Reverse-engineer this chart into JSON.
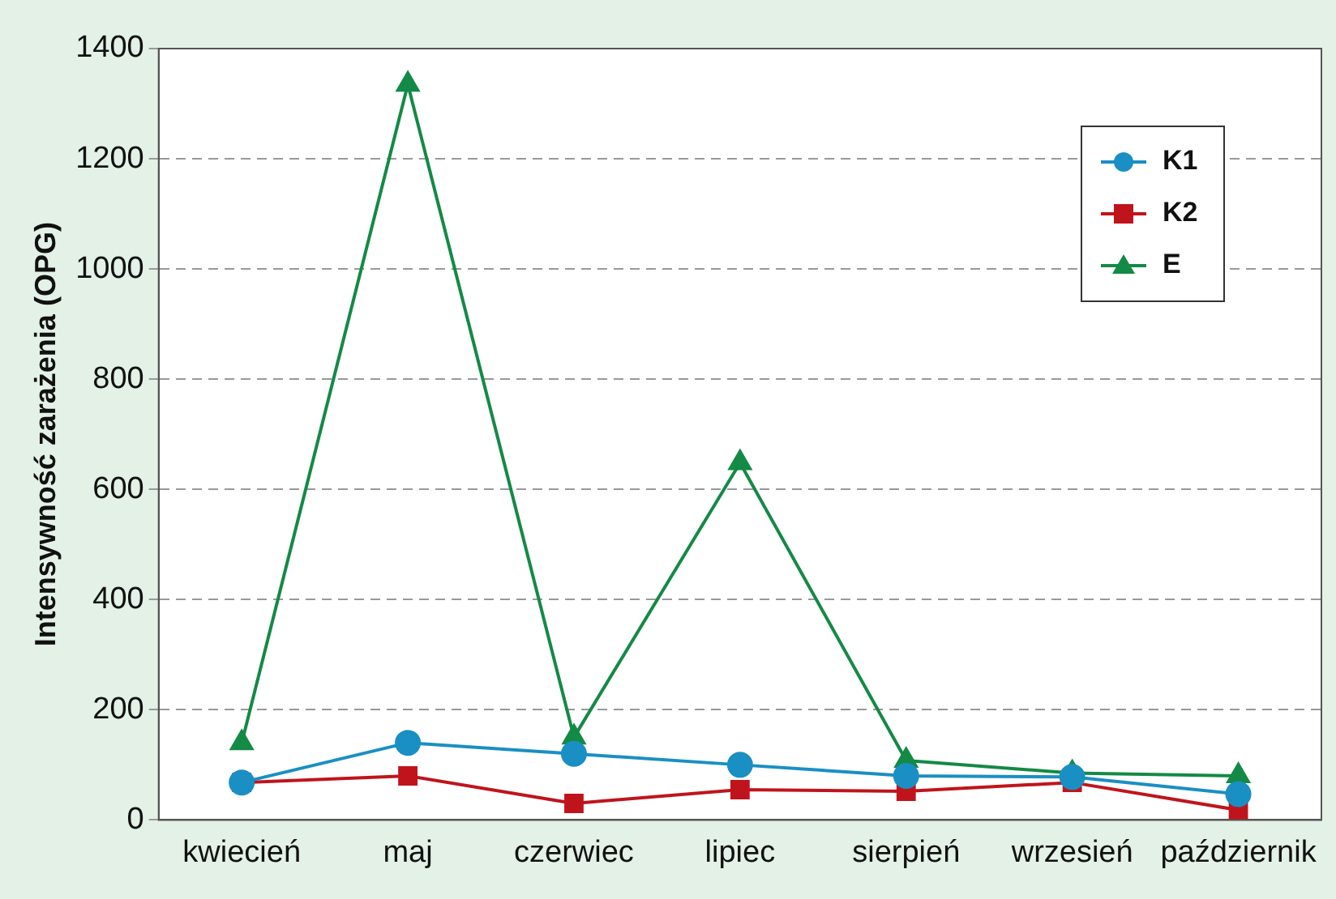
{
  "chart_data": {
    "type": "line",
    "ylabel": "Intensywność zarażenia (OPG)",
    "categories": [
      "kwiecień",
      "maj",
      "czerwiec",
      "lipiec",
      "sierpień",
      "wrzesień",
      "październik"
    ],
    "series": [
      {
        "name": "K1",
        "color": "#1a8fc4",
        "marker": "circle",
        "values": [
          68,
          140,
          120,
          100,
          80,
          78,
          47
        ]
      },
      {
        "name": "K2",
        "color": "#c0141c",
        "marker": "square",
        "values": [
          68,
          80,
          30,
          55,
          52,
          68,
          18
        ]
      },
      {
        "name": "E",
        "color": "#138a45",
        "marker": "triangle",
        "values": [
          140,
          1335,
          150,
          648,
          108,
          85,
          80
        ]
      }
    ],
    "ylim": [
      0,
      1400
    ],
    "yticks": [
      0,
      200,
      400,
      600,
      800,
      1000,
      1200,
      1400
    ],
    "grid": "y",
    "legend": "top right"
  }
}
